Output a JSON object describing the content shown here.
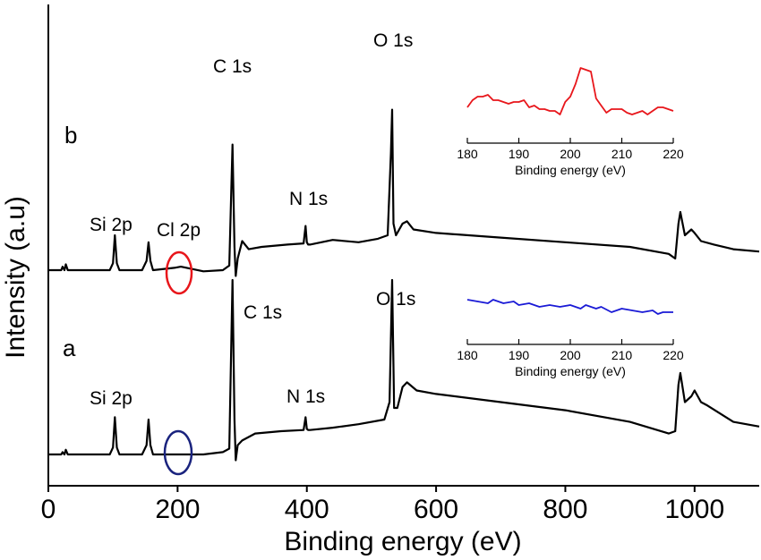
{
  "chart_data": [
    {
      "type": "line",
      "xlabel": "Binding energy (eV)",
      "ylabel": "Intensity (a.u)",
      "xlim": [
        0,
        1100
      ],
      "x_ticks": [
        0,
        200,
        400,
        600,
        800,
        1000
      ],
      "grid": false,
      "series": [
        {
          "name": "b",
          "x": [
            0,
            20,
            22,
            25,
            27,
            30,
            60,
            95,
            100,
            103,
            106,
            110,
            145,
            152,
            155,
            158,
            162,
            195,
            205,
            240,
            270,
            280,
            285,
            288,
            290,
            293,
            300,
            310,
            330,
            370,
            395,
            398,
            400,
            402,
            405,
            440,
            480,
            510,
            525,
            530,
            532,
            534,
            538,
            548,
            555,
            565,
            600,
            700,
            800,
            900,
            960,
            970,
            975,
            978,
            985,
            995,
            1000,
            1010,
            1030,
            1060,
            1100
          ],
          "y": [
            0,
            0,
            3,
            0,
            5,
            0,
            0,
            0,
            6,
            30,
            6,
            0,
            0,
            8,
            24,
            8,
            0,
            2,
            3,
            -1,
            0,
            4,
            108,
            20,
            -5,
            10,
            25,
            18,
            20,
            22,
            23,
            38,
            24,
            22,
            22,
            26,
            24,
            27,
            30,
            100,
            138,
            40,
            30,
            40,
            42,
            35,
            32,
            28,
            24,
            20,
            14,
            10,
            40,
            50,
            30,
            35,
            32,
            25,
            22,
            18,
            16
          ]
        },
        {
          "name": "a",
          "x": [
            0,
            20,
            22,
            25,
            27,
            30,
            60,
            95,
            100,
            103,
            106,
            110,
            145,
            152,
            155,
            158,
            162,
            195,
            205,
            240,
            270,
            280,
            285,
            288,
            290,
            293,
            300,
            320,
            360,
            395,
            398,
            400,
            402,
            405,
            440,
            480,
            520,
            528,
            532,
            535,
            540,
            548,
            555,
            570,
            600,
            700,
            800,
            900,
            960,
            970,
            975,
            978,
            985,
            995,
            1000,
            1010,
            1020,
            1060,
            1100
          ],
          "y": [
            0,
            0,
            2,
            0,
            4,
            0,
            0,
            0,
            6,
            32,
            6,
            0,
            0,
            8,
            30,
            8,
            0,
            0,
            0,
            0,
            2,
            5,
            150,
            30,
            -5,
            8,
            12,
            18,
            20,
            21,
            32,
            22,
            21,
            21,
            23,
            26,
            30,
            45,
            150,
            40,
            40,
            58,
            62,
            55,
            52,
            45,
            38,
            28,
            18,
            20,
            60,
            70,
            45,
            50,
            55,
            45,
            42,
            28,
            24
          ]
        }
      ],
      "annotations": {
        "series_labels": [
          "b",
          "a"
        ],
        "peaks_b": [
          "Si 2p",
          "Cl 2p",
          "C 1s",
          "N 1s",
          "O 1s"
        ],
        "peaks_a": [
          "Si 2p",
          "C 1s",
          "N 1s",
          "O 1s"
        ],
        "ellipse_colors": {
          "b": "#e8161b",
          "a": "#1a237e"
        }
      }
    },
    {
      "type": "line",
      "panel": "inset b",
      "xlabel": "Binding energy (eV)",
      "xlim": [
        180,
        220
      ],
      "x_ticks": [
        180,
        190,
        200,
        210,
        220
      ],
      "color": "#e8161b",
      "series": [
        {
          "x": [
            180,
            181,
            182,
            183,
            184,
            185,
            186,
            187,
            188,
            189,
            190,
            191,
            192,
            193,
            194,
            195,
            196,
            197,
            198,
            199,
            200,
            201,
            202,
            203,
            204,
            205,
            206,
            207,
            208,
            209,
            210,
            211,
            212,
            213,
            214,
            215,
            216,
            217,
            218,
            219,
            220
          ],
          "y": [
            5,
            9,
            11,
            11,
            12,
            9,
            9,
            8,
            7,
            8,
            8,
            9,
            5,
            6,
            4,
            4,
            3,
            3,
            1,
            8,
            11,
            18,
            27,
            26,
            25,
            10,
            6,
            2,
            4,
            4,
            4,
            2,
            1,
            2,
            3,
            1,
            3,
            5,
            5,
            4,
            3
          ]
        }
      ]
    },
    {
      "type": "line",
      "panel": "inset a",
      "xlabel": "Binding energy (eV)",
      "xlim": [
        180,
        220
      ],
      "x_ticks": [
        180,
        190,
        200,
        210,
        220
      ],
      "color": "#1a1ad6",
      "series": [
        {
          "x": [
            180,
            182,
            184,
            185,
            187,
            189,
            190,
            192,
            194,
            196,
            198,
            200,
            202,
            203,
            205,
            206,
            208,
            210,
            212,
            214,
            216,
            217,
            218,
            220
          ],
          "y": [
            10,
            9,
            8,
            10,
            8,
            9,
            7,
            8,
            6,
            7,
            6,
            7,
            5,
            7,
            5,
            6,
            3,
            5,
            4,
            3,
            4,
            2,
            3,
            3
          ]
        }
      ]
    }
  ]
}
